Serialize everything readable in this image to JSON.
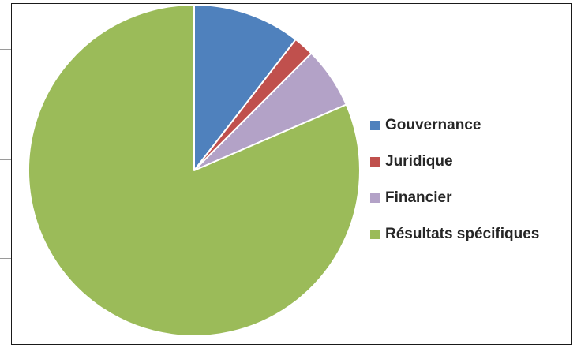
{
  "chart_data": {
    "type": "pie",
    "slices": [
      {
        "label": "Gouvernance",
        "value": 10.5,
        "color": "#4F81BD"
      },
      {
        "label": "Juridique",
        "value": 2.0,
        "color": "#C0504D"
      },
      {
        "label": "Financier",
        "value": 6.0,
        "color": "#B3A2C7"
      },
      {
        "label": "Résultats spécifiques",
        "value": 81.5,
        "color": "#9BBB59"
      }
    ],
    "start_angle_deg": 0,
    "direction": "clockwise",
    "legend": {
      "placement": "right"
    }
  }
}
